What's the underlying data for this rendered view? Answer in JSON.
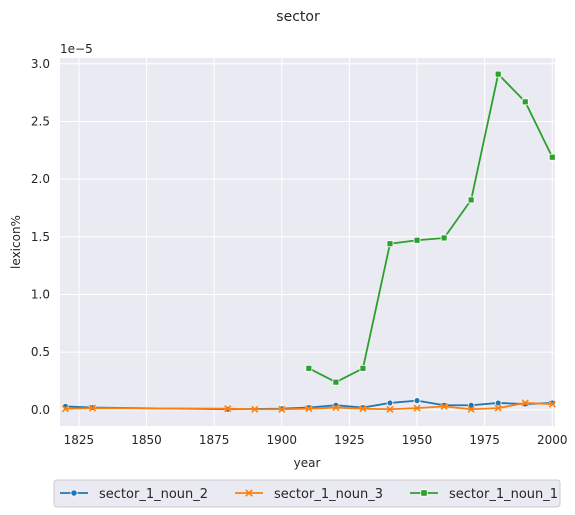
{
  "chart_data": {
    "type": "line",
    "title": "sector",
    "xlabel": "year",
    "ylabel": "lexicon%",
    "offset_label": "1e−5",
    "xlim": [
      1818,
      2001
    ],
    "ylim": [
      -0.14,
      3.05
    ],
    "y_scale_factor": 1e-05,
    "xticks": [
      1825,
      1850,
      1875,
      1900,
      1925,
      1950,
      1975,
      2000
    ],
    "yticks": [
      0.0,
      0.5,
      1.0,
      1.5,
      2.0,
      2.5,
      3.0
    ],
    "ytick_labels": [
      "0.0",
      "0.5",
      "1.0",
      "1.5",
      "2.0",
      "2.5",
      "3.0"
    ],
    "grid": true,
    "legend_position": "bottom-center",
    "series": [
      {
        "name": "sector_1_noun_2",
        "color": "#1f77b4",
        "marker": "circle",
        "x": [
          1820,
          1830,
          1880,
          1900,
          1910,
          1920,
          1930,
          1940,
          1950,
          1960,
          1970,
          1980,
          1990,
          2000
        ],
        "y": [
          0.03,
          0.02,
          0.005,
          0.01,
          0.02,
          0.04,
          0.02,
          0.06,
          0.08,
          0.04,
          0.04,
          0.06,
          0.05,
          0.06
        ]
      },
      {
        "name": "sector_1_noun_3",
        "color": "#ff7f0e",
        "marker": "x",
        "x": [
          1820,
          1830,
          1880,
          1890,
          1900,
          1910,
          1920,
          1930,
          1940,
          1950,
          1960,
          1970,
          1980,
          1990,
          2000
        ],
        "y": [
          0.01,
          0.015,
          0.01,
          0.005,
          0.005,
          0.01,
          0.02,
          0.01,
          0.005,
          0.015,
          0.03,
          0.005,
          0.015,
          0.06,
          0.05
        ]
      },
      {
        "name": "sector_1_noun_1",
        "color": "#2ca02c",
        "marker": "square",
        "x": [
          1910,
          1920,
          1930,
          1940,
          1950,
          1960,
          1970,
          1980,
          1990,
          2000
        ],
        "y": [
          0.36,
          0.24,
          0.36,
          1.44,
          1.47,
          1.49,
          1.82,
          2.91,
          2.67,
          2.19
        ]
      }
    ]
  }
}
